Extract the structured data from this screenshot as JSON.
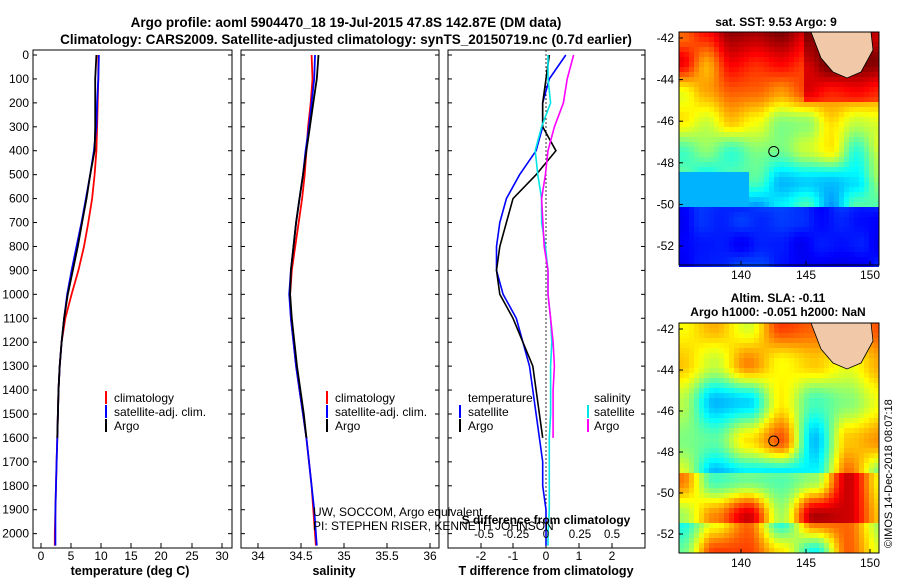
{
  "title": {
    "line1": "Argo profile: aoml 5904470_18 19-Jul-2015 47.8S 142.87E (DM data)",
    "line2": "Climatology: CARS2009. Satellite-adjusted climatology: synTS_20150719.nc (0.7d earlier)"
  },
  "depth_ticks": [
    "0",
    "100",
    "200",
    "300",
    "400",
    "500",
    "600",
    "700",
    "800",
    "900",
    "1000",
    "1100",
    "1200",
    "1300",
    "1400",
    "1500",
    "1600",
    "1700",
    "1800",
    "1900",
    "2000"
  ],
  "panels": {
    "temperature": {
      "xlabel": "temperature (deg C)",
      "ticks": [
        "0",
        "5",
        "10",
        "15",
        "20",
        "25",
        "30"
      ],
      "legend": [
        "climatology",
        "satellite-adj. clim.",
        "Argo"
      ]
    },
    "salinity": {
      "xlabel": "salinity",
      "ticks": [
        "34",
        "34.5",
        "35",
        "35.5",
        "36"
      ],
      "legend": [
        "climatology",
        "satellite-adj. clim.",
        "Argo"
      ],
      "credit1": "UW, SOCCOM, Argo equivalent",
      "credit2": "PI: STEPHEN RISER, KENNETH JOHNSON"
    },
    "difference": {
      "xlabel": "T difference from climatology",
      "top_ticks": [
        "-2",
        "-1",
        "0",
        "1",
        "2"
      ],
      "inner_label": "S difference from climatology",
      "inner_ticks": [
        "-0.5",
        "-0.25",
        "0",
        "0.25",
        "0.5"
      ],
      "legend_temp_title": "temperature",
      "legend_sal_title": "salinity",
      "legend_temp": [
        "satellite",
        "Argo"
      ],
      "legend_sal": [
        "satellite",
        "Argo"
      ]
    }
  },
  "maps": {
    "sst": {
      "title": "sat. SST: 9.53 Argo: 9",
      "yticks": [
        "-42",
        "-44",
        "-46",
        "-48",
        "-50",
        "-52"
      ],
      "xticks": [
        "140",
        "145",
        "150"
      ]
    },
    "sla": {
      "title1": "Altim. SLA: -0.11",
      "title2": "Argo h1000: -0.051 h2000: NaN",
      "yticks": [
        "-42",
        "-44",
        "-46",
        "-48",
        "-50",
        "-52"
      ],
      "xticks": [
        "140",
        "145",
        "150"
      ]
    }
  },
  "watermark": "©IMOS 14-Dec-2018 08:07:18",
  "colors": {
    "climatology": "#ff0000",
    "satellite": "#0000ff",
    "argo": "#000000",
    "sat_s": "#00e5e5",
    "argo_s": "#ff00ff"
  },
  "chart_data": [
    {
      "type": "line",
      "title": "temperature profile",
      "xlabel": "temperature (deg C)",
      "ylabel": "depth",
      "xlim": [
        -1,
        31
      ],
      "ylim": [
        2060,
        0
      ],
      "series": [
        {
          "name": "climatology",
          "depth": [
            0,
            100,
            200,
            300,
            400,
            500,
            600,
            700,
            800,
            900,
            1000,
            1100,
            1200,
            1300,
            1400,
            1500,
            1600,
            1700,
            1800,
            1900,
            2000,
            2050
          ],
          "values": [
            9.5,
            9.5,
            9.4,
            9.3,
            9.2,
            8.9,
            8.5,
            7.9,
            7.2,
            6.3,
            5.2,
            4.2,
            3.6,
            3.3,
            3.1,
            3.0,
            2.9,
            2.8,
            2.7,
            2.6,
            2.5,
            2.5
          ]
        },
        {
          "name": "satellite-adj. clim.",
          "depth": [
            0,
            100,
            200,
            300,
            400,
            500,
            600,
            700,
            800,
            900,
            1000,
            1100,
            1200,
            1300,
            1400,
            1500,
            1600,
            1700,
            1800,
            1900,
            2000,
            2050
          ],
          "values": [
            9.6,
            9.5,
            9.3,
            9.2,
            8.8,
            8.2,
            7.5,
            6.8,
            6.0,
            5.2,
            4.5,
            4.0,
            3.6,
            3.3,
            3.1,
            3.0,
            2.9,
            2.8,
            2.7,
            2.6,
            2.6,
            2.6
          ]
        },
        {
          "name": "Argo",
          "depth": [
            0,
            100,
            200,
            300,
            400,
            500,
            600,
            700,
            800,
            900,
            1000,
            1100,
            1200,
            1300,
            1400,
            1500,
            1600
          ],
          "values": [
            9.2,
            9.0,
            9.0,
            9.0,
            8.9,
            8.2,
            7.6,
            6.9,
            6.2,
            5.4,
            4.6,
            4.0,
            3.6,
            3.3,
            3.1,
            3.0,
            2.9
          ]
        }
      ]
    },
    {
      "type": "line",
      "title": "salinity profile",
      "xlabel": "salinity",
      "ylabel": "depth",
      "xlim": [
        33.8,
        36.1
      ],
      "ylim": [
        2060,
        0
      ],
      "series": [
        {
          "name": "climatology",
          "depth": [
            0,
            100,
            200,
            300,
            400,
            500,
            600,
            700,
            800,
            900,
            1000,
            1100,
            1200,
            1300,
            1400,
            1500,
            1600,
            1700,
            1800,
            1900,
            2000,
            2050
          ],
          "values": [
            34.62,
            34.63,
            34.61,
            34.58,
            34.56,
            34.54,
            34.51,
            34.47,
            34.43,
            34.39,
            34.37,
            34.38,
            34.41,
            34.44,
            34.48,
            34.52,
            34.56,
            34.59,
            34.62,
            34.64,
            34.66,
            34.67
          ]
        },
        {
          "name": "satellite-adj. clim.",
          "depth": [
            0,
            100,
            200,
            300,
            400,
            500,
            600,
            700,
            800,
            900,
            1000,
            1100,
            1200,
            1300,
            1400,
            1500,
            1600,
            1700,
            1800,
            1900,
            2000,
            2050
          ],
          "values": [
            34.66,
            34.65,
            34.62,
            34.59,
            34.55,
            34.52,
            34.48,
            34.44,
            34.41,
            34.38,
            34.36,
            34.38,
            34.41,
            34.44,
            34.48,
            34.52,
            34.56,
            34.59,
            34.62,
            34.65,
            34.67,
            34.68
          ]
        },
        {
          "name": "Argo",
          "depth": [
            0,
            100,
            200,
            300,
            400,
            500,
            600,
            700,
            800,
            900,
            1000,
            1100,
            1200,
            1300,
            1400,
            1500,
            1600
          ],
          "values": [
            34.7,
            34.68,
            34.64,
            34.6,
            34.56,
            34.52,
            34.48,
            34.44,
            34.41,
            34.38,
            34.37,
            34.39,
            34.42,
            34.45,
            34.49,
            34.53,
            34.56
          ]
        }
      ]
    },
    {
      "type": "line",
      "title": "difference from climatology",
      "xlabel": "T difference from climatology",
      "ylabel": "depth",
      "xlim": [
        -3.0,
        3.0
      ],
      "ylim": [
        2060,
        0
      ],
      "series": [
        {
          "name": "temperature satellite",
          "depth": [
            0,
            100,
            200,
            300,
            400,
            500,
            600,
            700,
            800,
            900,
            1000,
            1100,
            1200,
            1300,
            1400,
            1500,
            1600,
            1700,
            1800,
            1900,
            2000,
            2050
          ],
          "values": [
            0.6,
            0.1,
            -0.1,
            -0.1,
            -0.3,
            -0.8,
            -1.2,
            -1.4,
            -1.5,
            -1.5,
            -1.3,
            -0.9,
            -0.7,
            -0.5,
            -0.4,
            -0.3,
            -0.2,
            -0.1,
            -0.1,
            0.0,
            0.0,
            0.0
          ]
        },
        {
          "name": "temperature Argo",
          "depth": [
            0,
            100,
            200,
            300,
            400,
            500,
            600,
            700,
            800,
            900,
            1000,
            1100,
            1200,
            1300,
            1400,
            1500,
            1600
          ],
          "values": [
            0.1,
            0.0,
            -0.1,
            -0.1,
            0.3,
            -0.3,
            -1.0,
            -1.2,
            -1.4,
            -1.5,
            -1.4,
            -1.0,
            -0.7,
            -0.4,
            -0.3,
            -0.2,
            -0.1
          ]
        },
        {
          "name": "salinity satellite",
          "depth": [
            0,
            100,
            200,
            300,
            400,
            500,
            600,
            700,
            800,
            900,
            1000,
            1100,
            1200,
            1300,
            1400,
            1500,
            1600,
            1700,
            1800,
            1900,
            2000,
            2050
          ],
          "values": [
            0.0,
            0.0,
            0.02,
            -0.05,
            -0.1,
            -0.08,
            -0.05,
            -0.05,
            -0.02,
            0.0,
            0.0,
            0.02,
            0.03,
            0.02,
            0.02,
            0.02,
            0.01,
            0.01,
            0.01,
            0.01,
            0.0,
            0.0
          ]
        },
        {
          "name": "salinity Argo",
          "depth": [
            0,
            100,
            200,
            300,
            400,
            500,
            600,
            700,
            800,
            900,
            1000,
            1100,
            1200,
            1300,
            1400,
            1500,
            1600
          ],
          "values": [
            0.2,
            0.15,
            0.12,
            0.05,
            0.0,
            -0.02,
            -0.05,
            -0.04,
            -0.03,
            0.0,
            0.0,
            0.02,
            0.04,
            0.05,
            0.04,
            0.04,
            0.04
          ]
        }
      ]
    },
    {
      "type": "heatmap",
      "title": "sat. SST: 9.53 Argo: 9",
      "xlim": [
        136,
        150.5
      ],
      "ylim": [
        -53.5,
        -41.8
      ],
      "argo_location": {
        "lon": 142.87,
        "lat": -47.8
      }
    },
    {
      "type": "heatmap",
      "title": "Altim. SLA: -0.11",
      "xlim": [
        136,
        150.5
      ],
      "ylim": [
        -53.5,
        -41.8
      ],
      "argo_location": {
        "lon": 142.87,
        "lat": -47.8
      }
    }
  ]
}
